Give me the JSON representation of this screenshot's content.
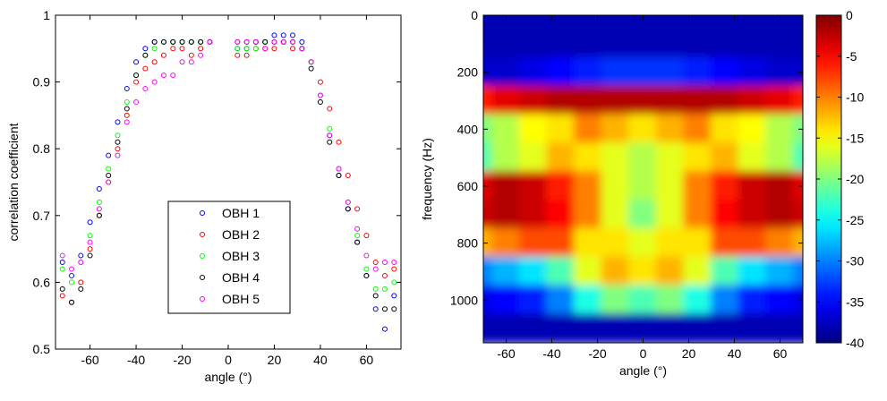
{
  "chart_data": [
    {
      "type": "scatter",
      "xlabel": "angle (°)",
      "ylabel": "correlation coefficient",
      "x": [
        -72,
        -68,
        -64,
        -60,
        -56,
        -52,
        -48,
        -44,
        -40,
        -36,
        -32,
        -28,
        -24,
        -20,
        -16,
        -12,
        -8,
        4,
        8,
        12,
        16,
        20,
        24,
        28,
        32,
        36,
        40,
        44,
        48,
        52,
        56,
        60,
        64,
        68,
        72
      ],
      "series": [
        {
          "name": "OBH 1",
          "color": "#0000ff",
          "values": [
            0.63,
            0.61,
            0.64,
            0.69,
            0.74,
            0.79,
            0.84,
            0.89,
            0.93,
            0.95,
            0.96,
            0.96,
            0.96,
            0.96,
            0.96,
            0.96,
            0.96,
            0.95,
            0.95,
            0.96,
            0.96,
            0.97,
            0.97,
            0.97,
            0.96,
            0.93,
            0.88,
            0.82,
            0.76,
            0.71,
            0.66,
            0.61,
            0.56,
            0.53,
            0.58
          ]
        },
        {
          "name": "OBH 2",
          "color": "#ff0000",
          "values": [
            0.58,
            0.57,
            0.6,
            0.65,
            0.7,
            0.75,
            0.8,
            0.85,
            0.9,
            0.92,
            0.93,
            0.94,
            0.95,
            0.95,
            0.94,
            0.95,
            0.96,
            0.94,
            0.94,
            0.95,
            0.95,
            0.95,
            0.96,
            0.95,
            0.95,
            0.93,
            0.9,
            0.86,
            0.81,
            0.76,
            0.71,
            0.67,
            0.63,
            0.61,
            0.62
          ]
        },
        {
          "name": "OBH 3",
          "color": "#00ff00",
          "values": [
            0.62,
            0.6,
            0.63,
            0.67,
            0.72,
            0.77,
            0.82,
            0.87,
            0.91,
            0.94,
            0.95,
            0.96,
            0.96,
            0.96,
            0.96,
            0.96,
            0.96,
            0.95,
            0.95,
            0.95,
            0.96,
            0.96,
            0.96,
            0.96,
            0.95,
            0.93,
            0.88,
            0.83,
            0.77,
            0.72,
            0.67,
            0.62,
            0.59,
            0.59,
            0.6
          ]
        },
        {
          "name": "OBH 4",
          "color": "#000000",
          "values": [
            0.59,
            0.57,
            0.59,
            0.64,
            0.7,
            0.76,
            0.81,
            0.86,
            0.91,
            0.94,
            0.96,
            0.96,
            0.96,
            0.96,
            0.96,
            0.96,
            0.96,
            0.96,
            0.96,
            0.96,
            0.96,
            0.96,
            0.96,
            0.96,
            0.95,
            0.92,
            0.87,
            0.81,
            0.76,
            0.71,
            0.66,
            0.61,
            0.58,
            0.56,
            0.56
          ]
        },
        {
          "name": "OBH 5",
          "color": "#ff00ff",
          "values": [
            0.64,
            0.62,
            0.63,
            0.66,
            0.71,
            0.75,
            0.79,
            0.84,
            0.87,
            0.89,
            0.9,
            0.91,
            0.91,
            0.93,
            0.93,
            0.94,
            0.96,
            0.96,
            0.96,
            0.96,
            0.95,
            0.96,
            0.96,
            0.96,
            0.95,
            0.93,
            0.88,
            0.82,
            0.77,
            0.72,
            0.68,
            0.64,
            0.62,
            0.63,
            0.63
          ]
        }
      ],
      "xlim": [
        -75,
        75
      ],
      "xticks": [
        -60,
        -40,
        -20,
        0,
        20,
        40,
        60
      ],
      "ylim": [
        0.5,
        1
      ],
      "yticks": [
        0.5,
        0.6,
        0.7,
        0.8,
        0.9,
        1
      ],
      "legend": "lower center"
    },
    {
      "type": "heatmap",
      "xlabel": "angle (°)",
      "ylabel": "frequency (Hz)",
      "x": [
        -72,
        -60,
        -48,
        -36,
        -24,
        -12,
        0,
        12,
        24,
        36,
        48,
        60,
        72
      ],
      "y": [
        0,
        100,
        200,
        300,
        400,
        500,
        600,
        700,
        800,
        900,
        1000,
        1100
      ],
      "z": [
        [
          -38,
          -38,
          -38,
          -38,
          -38,
          -38,
          -38,
          -38,
          -38,
          -38,
          -38,
          -38,
          -38
        ],
        [
          -38,
          -38,
          -38,
          -38,
          -38,
          -38,
          -38,
          -38,
          -38,
          -38,
          -38,
          -38,
          -38
        ],
        [
          -37,
          -37,
          -36,
          -35,
          -34,
          -33,
          -33,
          -33,
          -34,
          -35,
          -36,
          -37,
          -37
        ],
        [
          -6,
          -4,
          -3,
          -2,
          -2,
          -2,
          -2,
          -2,
          -2,
          -2,
          -3,
          -4,
          -6
        ],
        [
          -20,
          -18,
          -15,
          -14,
          -10,
          -12,
          -14,
          -12,
          -10,
          -14,
          -15,
          -18,
          -20
        ],
        [
          -22,
          -18,
          -16,
          -12,
          -14,
          -16,
          -18,
          -16,
          -14,
          -12,
          -16,
          -18,
          -22
        ],
        [
          -4,
          -2,
          -3,
          -6,
          -10,
          -16,
          -18,
          -16,
          -10,
          -6,
          -3,
          -2,
          -4
        ],
        [
          -3,
          -2,
          -3,
          -5,
          -10,
          -16,
          -20,
          -16,
          -10,
          -5,
          -3,
          -2,
          -3
        ],
        [
          -12,
          -10,
          -8,
          -8,
          -14,
          -14,
          -16,
          -14,
          -14,
          -8,
          -8,
          -10,
          -12
        ],
        [
          -30,
          -28,
          -26,
          -22,
          -16,
          -12,
          -14,
          -12,
          -16,
          -22,
          -26,
          -28,
          -30
        ],
        [
          -36,
          -35,
          -34,
          -30,
          -24,
          -20,
          -22,
          -20,
          -24,
          -30,
          -34,
          -35,
          -36
        ],
        [
          -38,
          -38,
          -38,
          -38,
          -38,
          -38,
          -38,
          -38,
          -38,
          -38,
          -38,
          -38,
          -38
        ]
      ],
      "xlim": [
        -70,
        70
      ],
      "xticks": [
        -60,
        -40,
        -20,
        0,
        20,
        40,
        60
      ],
      "ylim": [
        0,
        1150
      ],
      "yticks": [
        0,
        200,
        400,
        600,
        800,
        1000
      ],
      "yreverse": true,
      "colormap": "jet",
      "clim": [
        -40,
        0
      ],
      "cticks": [
        0,
        -5,
        -10,
        -15,
        -20,
        -25,
        -30,
        -35,
        -40
      ]
    }
  ]
}
